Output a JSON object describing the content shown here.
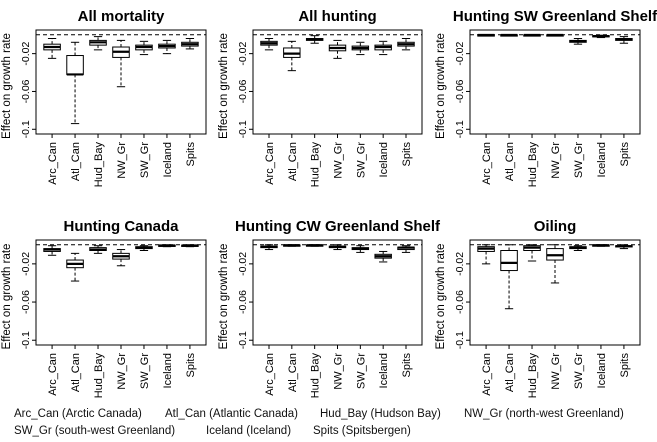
{
  "chart_data": [
    {
      "type": "boxplot",
      "title": "All mortality",
      "ylabel": "Effect on growth rate",
      "ylim": [
        -0.105,
        0.005
      ],
      "yticks": [
        -0.02,
        -0.06,
        -0.1
      ],
      "reference_line": 0,
      "categories": [
        "Arc_Can",
        "Atl_Can",
        "Hud_Bay",
        "NW_Gr",
        "SW_Gr",
        "Iceland",
        "Spits"
      ],
      "boxes": [
        {
          "category": "Arc_Can",
          "wlo": -0.025,
          "q1": -0.016,
          "median": -0.013,
          "q3": -0.01,
          "whi": -0.004
        },
        {
          "category": "Atl_Can",
          "wlo": -0.094,
          "q1": -0.042,
          "median": -0.042,
          "q3": -0.022,
          "whi": -0.008
        },
        {
          "category": "Hud_Bay",
          "wlo": -0.016,
          "q1": -0.011,
          "median": -0.008,
          "q3": -0.006,
          "whi": -0.002
        },
        {
          "category": "NW_Gr",
          "wlo": -0.055,
          "q1": -0.024,
          "median": -0.018,
          "q3": -0.013,
          "whi": -0.006
        },
        {
          "category": "SW_Gr",
          "wlo": -0.021,
          "q1": -0.016,
          "median": -0.013,
          "q3": -0.011,
          "whi": -0.007
        },
        {
          "category": "Iceland",
          "wlo": -0.02,
          "q1": -0.014,
          "median": -0.012,
          "q3": -0.01,
          "whi": -0.006
        },
        {
          "category": "Spits",
          "wlo": -0.015,
          "q1": -0.012,
          "median": -0.01,
          "q3": -0.008,
          "whi": -0.004
        }
      ]
    },
    {
      "type": "boxplot",
      "title": "All hunting",
      "ylabel": "Effect on growth rate",
      "ylim": [
        -0.105,
        0.005
      ],
      "yticks": [
        -0.02,
        -0.06,
        -0.1
      ],
      "reference_line": 0,
      "categories": [
        "Arc_Can",
        "Atl_Can",
        "Hud_Bay",
        "NW_Gr",
        "SW_Gr",
        "Iceland",
        "Spits"
      ],
      "boxes": [
        {
          "category": "Arc_Can",
          "wlo": -0.016,
          "q1": -0.011,
          "median": -0.009,
          "q3": -0.007,
          "whi": -0.004
        },
        {
          "category": "Atl_Can",
          "wlo": -0.038,
          "q1": -0.024,
          "median": -0.02,
          "q3": -0.014,
          "whi": -0.007
        },
        {
          "category": "Hud_Bay",
          "wlo": -0.009,
          "q1": -0.006,
          "median": -0.005,
          "q3": -0.004,
          "whi": -0.001
        },
        {
          "category": "NW_Gr",
          "wlo": -0.025,
          "q1": -0.017,
          "median": -0.014,
          "q3": -0.011,
          "whi": -0.006
        },
        {
          "category": "SW_Gr",
          "wlo": -0.021,
          "q1": -0.016,
          "median": -0.014,
          "q3": -0.012,
          "whi": -0.008
        },
        {
          "category": "Iceland",
          "wlo": -0.021,
          "q1": -0.016,
          "median": -0.013,
          "q3": -0.011,
          "whi": -0.007
        },
        {
          "category": "Spits",
          "wlo": -0.016,
          "q1": -0.012,
          "median": -0.01,
          "q3": -0.008,
          "whi": -0.004
        }
      ]
    },
    {
      "type": "boxplot",
      "title": "Hunting SW Greenland Shelf",
      "ylabel": "Effect on growth rate",
      "ylim": [
        -0.105,
        0.005
      ],
      "yticks": [
        -0.02,
        -0.06,
        -0.1
      ],
      "reference_line": 0,
      "categories": [
        "Arc_Can",
        "Atl_Can",
        "Hud_Bay",
        "NW_Gr",
        "SW_Gr",
        "Iceland",
        "Spits"
      ],
      "boxes": [
        {
          "category": "Arc_Can",
          "wlo": -0.0008,
          "q1": -0.0004,
          "median": -0.0003,
          "q3": -0.0002,
          "whi": 0.0
        },
        {
          "category": "Atl_Can",
          "wlo": -0.0008,
          "q1": -0.0004,
          "median": -0.0003,
          "q3": -0.0002,
          "whi": 0.0
        },
        {
          "category": "Hud_Bay",
          "wlo": -0.0008,
          "q1": -0.0004,
          "median": -0.0003,
          "q3": -0.0002,
          "whi": 0.0
        },
        {
          "category": "NW_Gr",
          "wlo": -0.0008,
          "q1": -0.0004,
          "median": -0.0003,
          "q3": -0.0002,
          "whi": 0.0
        },
        {
          "category": "SW_Gr",
          "wlo": -0.01,
          "q1": -0.008,
          "median": -0.007,
          "q3": -0.006,
          "whi": -0.004
        },
        {
          "category": "Iceland",
          "wlo": -0.003,
          "q1": -0.002,
          "median": -0.0015,
          "q3": -0.001,
          "whi": -0.0005
        },
        {
          "category": "Spits",
          "wlo": -0.009,
          "q1": -0.006,
          "median": -0.005,
          "q3": -0.004,
          "whi": -0.002
        }
      ]
    },
    {
      "type": "boxplot",
      "title": "Hunting Canada",
      "ylabel": "Effect on growth rate",
      "ylim": [
        -0.105,
        0.005
      ],
      "yticks": [
        -0.02,
        -0.06,
        -0.1
      ],
      "reference_line": 0,
      "categories": [
        "Arc_Can",
        "Atl_Can",
        "Hud_Bay",
        "NW_Gr",
        "SW_Gr",
        "Iceland",
        "Spits"
      ],
      "boxes": [
        {
          "category": "Arc_Can",
          "wlo": -0.011,
          "q1": -0.007,
          "median": -0.005,
          "q3": -0.004,
          "whi": -0.001
        },
        {
          "category": "Atl_Can",
          "wlo": -0.038,
          "q1": -0.024,
          "median": -0.02,
          "q3": -0.016,
          "whi": -0.009
        },
        {
          "category": "Hud_Bay",
          "wlo": -0.009,
          "q1": -0.006,
          "median": -0.005,
          "q3": -0.003,
          "whi": -0.001
        },
        {
          "category": "NW_Gr",
          "wlo": -0.022,
          "q1": -0.015,
          "median": -0.012,
          "q3": -0.009,
          "whi": -0.005
        },
        {
          "category": "SW_Gr",
          "wlo": -0.006,
          "q1": -0.004,
          "median": -0.003,
          "q3": -0.002,
          "whi": -0.001
        },
        {
          "category": "Iceland",
          "wlo": -0.002,
          "q1": -0.001,
          "median": -0.0008,
          "q3": -0.0005,
          "whi": 0.0
        },
        {
          "category": "Spits",
          "wlo": -0.002,
          "q1": -0.001,
          "median": -0.0008,
          "q3": -0.0005,
          "whi": 0.0
        }
      ]
    },
    {
      "type": "boxplot",
      "title": "Hunting CW Greenland Shelf",
      "ylabel": "Effect on growth rate",
      "ylim": [
        -0.105,
        0.005
      ],
      "yticks": [
        -0.02,
        -0.06,
        -0.1
      ],
      "reference_line": 0,
      "categories": [
        "Arc_Can",
        "Atl_Can",
        "Hud_Bay",
        "NW_Gr",
        "SW_Gr",
        "Iceland",
        "Spits"
      ],
      "boxes": [
        {
          "category": "Arc_Can",
          "wlo": -0.005,
          "q1": -0.003,
          "median": -0.002,
          "q3": -0.0015,
          "whi": 0.0
        },
        {
          "category": "Atl_Can",
          "wlo": -0.0015,
          "q1": -0.0008,
          "median": -0.0005,
          "q3": -0.0003,
          "whi": 0.0
        },
        {
          "category": "Hud_Bay",
          "wlo": -0.0015,
          "q1": -0.0008,
          "median": -0.0005,
          "q3": -0.0003,
          "whi": 0.0
        },
        {
          "category": "NW_Gr",
          "wlo": -0.005,
          "q1": -0.003,
          "median": -0.002,
          "q3": -0.0015,
          "whi": 0.0
        },
        {
          "category": "SW_Gr",
          "wlo": -0.008,
          "q1": -0.005,
          "median": -0.004,
          "q3": -0.003,
          "whi": -0.001
        },
        {
          "category": "Iceland",
          "wlo": -0.018,
          "q1": -0.014,
          "median": -0.012,
          "q3": -0.01,
          "whi": -0.007
        },
        {
          "category": "Spits",
          "wlo": -0.008,
          "q1": -0.005,
          "median": -0.003,
          "q3": -0.0025,
          "whi": -0.001
        }
      ]
    },
    {
      "type": "boxplot",
      "title": "Oiling",
      "ylabel": "Effect on growth rate",
      "ylim": [
        -0.105,
        0.005
      ],
      "yticks": [
        -0.02,
        -0.06,
        -0.1
      ],
      "reference_line": 0,
      "categories": [
        "Arc_Can",
        "Atl_Can",
        "Hud_Bay",
        "NW_Gr",
        "SW_Gr",
        "Iceland",
        "Spits"
      ],
      "boxes": [
        {
          "category": "Arc_Can",
          "wlo": -0.02,
          "q1": -0.007,
          "median": -0.004,
          "q3": -0.002,
          "whi": 0.0
        },
        {
          "category": "Atl_Can",
          "wlo": -0.067,
          "q1": -0.027,
          "median": -0.019,
          "q3": -0.006,
          "whi": 0.0
        },
        {
          "category": "Hud_Bay",
          "wlo": -0.017,
          "q1": -0.006,
          "median": -0.003,
          "q3": -0.001,
          "whi": 0.0
        },
        {
          "category": "NW_Gr",
          "wlo": -0.04,
          "q1": -0.016,
          "median": -0.011,
          "q3": -0.004,
          "whi": 0.0
        },
        {
          "category": "SW_Gr",
          "wlo": -0.006,
          "q1": -0.004,
          "median": -0.003,
          "q3": -0.002,
          "whi": -0.001
        },
        {
          "category": "Iceland",
          "wlo": -0.0015,
          "q1": -0.0008,
          "median": -0.0005,
          "q3": -0.0003,
          "whi": 0.0
        },
        {
          "category": "Spits",
          "wlo": -0.004,
          "q1": -0.002,
          "median": -0.0015,
          "q3": -0.001,
          "whi": 0.0
        }
      ]
    }
  ],
  "legend": {
    "line1": [
      "Arc_Can (Arctic Canada)",
      "Atl_Can (Atlantic Canada)",
      "Hud_Bay (Hudson Bay)",
      "NW_Gr (north-west Greenland)"
    ],
    "line2": [
      "SW_Gr (south-west Greenland)",
      "Iceland (Iceland)",
      "Spits (Spitsbergen)"
    ]
  }
}
